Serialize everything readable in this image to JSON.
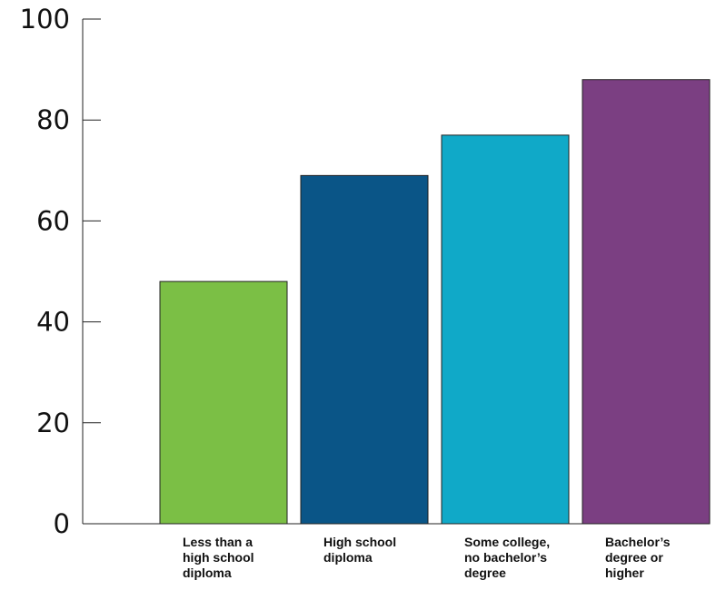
{
  "chart_data": {
    "type": "bar",
    "title": "",
    "xlabel": "",
    "ylabel": "",
    "categories": [
      "Less than a high school diploma",
      "High school diploma",
      "Some college, no bachelor’s degree",
      "Bachelor’s degree or higher"
    ],
    "category_label_lines": [
      [
        "Less than a",
        "high school",
        "diploma"
      ],
      [
        "High school",
        "diploma"
      ],
      [
        "Some college,",
        "no bachelor’s",
        "degree"
      ],
      [
        "Bachelor’s",
        "degree or",
        "higher"
      ]
    ],
    "values": [
      48,
      69,
      77,
      88
    ],
    "colors": [
      "#7bbf45",
      "#0a5587",
      "#10a9c8",
      "#7b3f82"
    ],
    "ylim": [
      0,
      100
    ],
    "yticks": [
      "0",
      "20",
      "40",
      "60",
      "80",
      "100"
    ],
    "grid": false,
    "legend": "none"
  }
}
